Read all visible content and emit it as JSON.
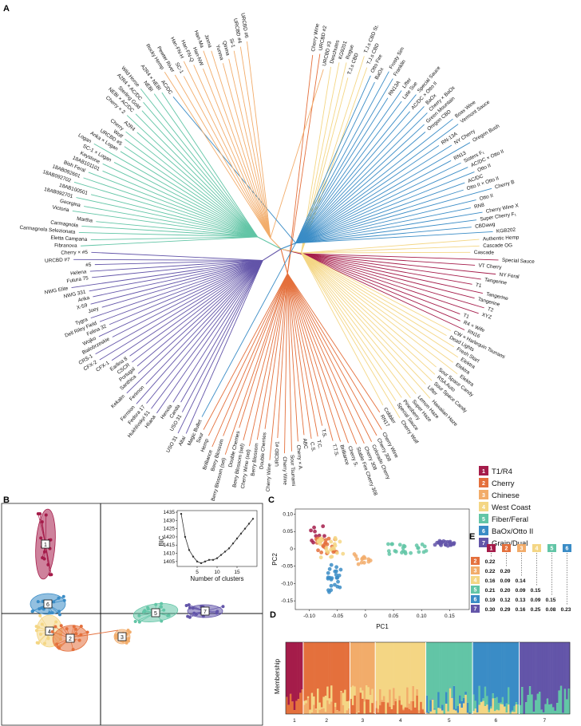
{
  "panels": {
    "a": "A",
    "b": "B",
    "c": "C",
    "d": "D",
    "e": "E"
  },
  "clusters": [
    {
      "id": "1",
      "name": "T1/R4",
      "color": "#a51c4a"
    },
    {
      "id": "2",
      "name": "Cherry",
      "color": "#e4703c"
    },
    {
      "id": "3",
      "name": "Chinese",
      "color": "#f2ac6a"
    },
    {
      "id": "4",
      "name": "West Coast",
      "color": "#f4d684"
    },
    {
      "id": "5",
      "name": "Fiber/Feral",
      "color": "#62c5a6"
    },
    {
      "id": "6",
      "name": "BaOx/Otto II",
      "color": "#3a8cc6"
    },
    {
      "id": "7",
      "name": "Grain/Dual",
      "color": "#6355a9"
    }
  ],
  "tree_leaves": [
    {
      "label": "Cherry Wine",
      "cluster": 2
    },
    {
      "label": "URCBD #2",
      "cluster": 2
    },
    {
      "label": "URCBD #3",
      "cluster": 3
    },
    {
      "label": "Deschutes",
      "cluster": 4
    },
    {
      "label": "KG9201",
      "cluster": 4
    },
    {
      "label": "Rogue",
      "cluster": 4
    },
    {
      "label": "T.J.s CBD",
      "cluster": 4
    },
    {
      "label": "T.J.s CBD St.",
      "cluster": 4
    },
    {
      "label": "T.J.s CBD",
      "cluster": 4
    },
    {
      "label": "Otto Fire",
      "cluster": 6
    },
    {
      "label": "BaOx",
      "cluster": 6
    },
    {
      "label": "Frosty Sim",
      "cluster": 6
    },
    {
      "label": "Franklin",
      "cluster": 6
    },
    {
      "label": "RN13A",
      "cluster": 6
    },
    {
      "label": "Lifter",
      "cluster": 6
    },
    {
      "label": "Late Sue",
      "cluster": 6
    },
    {
      "label": "Special Sauce",
      "cluster": 6
    },
    {
      "label": "AC/DC × Otto II",
      "cluster": 6
    },
    {
      "label": "BaOx",
      "cluster": 6
    },
    {
      "label": "Cherry × BaOx",
      "cluster": 6
    },
    {
      "label": "Green Mountain",
      "cluster": 6
    },
    {
      "label": "Oregon CBD",
      "cluster": 6
    },
    {
      "label": "Boax Wine",
      "cluster": 6
    },
    {
      "label": "Vermont Sauce",
      "cluster": 6
    },
    {
      "label": "RN-13A",
      "cluster": 6
    },
    {
      "label": "NY Cherry",
      "cluster": 6
    },
    {
      "label": "Oregon Bush",
      "cluster": 6
    },
    {
      "label": "RN13",
      "cluster": 6
    },
    {
      "label": "Sisters F₁",
      "cluster": 6
    },
    {
      "label": "AC/DC × Otto II",
      "cluster": 6
    },
    {
      "label": "Otto II",
      "cluster": 6
    },
    {
      "label": "AC/DC",
      "cluster": 6
    },
    {
      "label": "Otto II × Otto II",
      "cluster": 6
    },
    {
      "label": "Cherry B",
      "cluster": 6
    },
    {
      "label": "Otto II",
      "cluster": 6
    },
    {
      "label": "RN8",
      "cluster": 6
    },
    {
      "label": "Cherry Wine X",
      "cluster": 6
    },
    {
      "label": "Super Cherry F₁",
      "cluster": 6
    },
    {
      "label": "CBDawg",
      "cluster": 6
    },
    {
      "label": "KGB202",
      "cluster": 6
    },
    {
      "label": "Authentic Hemp",
      "cluster": 4
    },
    {
      "label": "Cascade OG",
      "cluster": 4
    },
    {
      "label": "Cascade",
      "cluster": 4
    },
    {
      "label": "Special Sauce",
      "cluster": 1
    },
    {
      "label": "VT Cherry",
      "cluster": 1
    },
    {
      "label": "NY Feral",
      "cluster": 1
    },
    {
      "label": "Tangerine",
      "cluster": 1
    },
    {
      "label": "T1",
      "cluster": 1
    },
    {
      "label": "Tangerine",
      "cluster": 1
    },
    {
      "label": "Tangerine",
      "cluster": 1
    },
    {
      "label": "T2",
      "cluster": 1
    },
    {
      "label": "XYZ",
      "cluster": 1
    },
    {
      "label": "T1",
      "cluster": 1
    },
    {
      "label": "R4 × Wife",
      "cluster": 1
    },
    {
      "label": "RN16",
      "cluster": 1
    },
    {
      "label": "CW × Harlequin Tsunami",
      "cluster": 4
    },
    {
      "label": "Dead Lights",
      "cluster": 4
    },
    {
      "label": "Fresh Start",
      "cluster": 4
    },
    {
      "label": "Elektra",
      "cluster": 4
    },
    {
      "label": "Elektra",
      "cluster": 4
    },
    {
      "label": "Elektra",
      "cluster": 4
    },
    {
      "label": "Sour Space Candy",
      "cluster": 4
    },
    {
      "label": "RSA Auto",
      "cluster": 4
    },
    {
      "label": "Sour Space Candy",
      "cluster": 4
    },
    {
      "label": "Lifter",
      "cluster": 4
    },
    {
      "label": "Hawaiian Haze",
      "cluster": 4
    },
    {
      "label": "Lemon Haze",
      "cluster": 4
    },
    {
      "label": "Super Haze",
      "cluster": 4
    },
    {
      "label": "Pinesberry",
      "cluster": 4
    },
    {
      "label": "Special Sauce",
      "cluster": 4
    },
    {
      "label": "Cherry Wolf",
      "cluster": 4
    },
    {
      "label": "Cobbler",
      "cluster": 4
    },
    {
      "label": "RN17",
      "cluster": 2
    },
    {
      "label": "Cherry Wine",
      "cluster": 2
    },
    {
      "label": "Cherry 308",
      "cluster": 2
    },
    {
      "label": "Colorado Cherry",
      "cluster": 2
    },
    {
      "label": "Cherry 308",
      "cluster": 2
    },
    {
      "label": "Stable Fire Cherry 308",
      "cluster": 2
    },
    {
      "label": "Cherry S.",
      "cluster": 2
    },
    {
      "label": "Brilliance",
      "cluster": 2
    },
    {
      "label": "T.T.S.",
      "cluster": 2
    },
    {
      "label": "T.S.",
      "cluster": 2
    },
    {
      "label": "T.C.",
      "cluster": 2
    },
    {
      "label": "C.S.",
      "cluster": 2
    },
    {
      "label": "ABC",
      "cluster": 2
    },
    {
      "label": "Cherry × A.",
      "cluster": 2
    },
    {
      "label": "Sour Tsunami",
      "cluster": 2
    },
    {
      "label": "Cherry Wine",
      "cluster": 2
    },
    {
      "label": "URCBD #1",
      "cluster": 2
    },
    {
      "label": "Cherry Wine",
      "cluster": 2
    },
    {
      "label": "Double Cherries",
      "cluster": 2
    },
    {
      "label": "Berry Blossom",
      "cluster": 2
    },
    {
      "label": "Cherry Wine (sel)",
      "cluster": 2
    },
    {
      "label": "Berry Blossom (sel)",
      "cluster": 2
    },
    {
      "label": "Double Cherries",
      "cluster": 2
    },
    {
      "label": "Berry Blossom (sel)",
      "cluster": 2
    },
    {
      "label": "Berry Blossom",
      "cluster": 2
    },
    {
      "label": "Brilliance",
      "cluster": 2
    },
    {
      "label": "Hemp",
      "cluster": 2
    },
    {
      "label": "Sour",
      "cluster": 2
    },
    {
      "label": "Magic Bullet",
      "cluster": 6
    },
    {
      "label": "Altai",
      "cluster": 7
    },
    {
      "label": "USO 31",
      "cluster": 7
    },
    {
      "label": "USO 31",
      "cluster": 7
    },
    {
      "label": "Canda",
      "cluster": 7
    },
    {
      "label": "Henola",
      "cluster": 7
    },
    {
      "label": "Hliana",
      "cluster": 7
    },
    {
      "label": "Hukhlivskyi 51",
      "cluster": 7
    },
    {
      "label": "Fedora 17",
      "cluster": 7
    },
    {
      "label": "Fermion",
      "cluster": 7
    },
    {
      "label": "Ferimon",
      "cluster": 7
    },
    {
      "label": "Kekalm",
      "cluster": 7
    },
    {
      "label": "Santhica",
      "cluster": 7
    },
    {
      "label": "Portugal",
      "cluster": 7
    },
    {
      "label": "CSCR",
      "cluster": 7
    },
    {
      "label": "Earlina 8",
      "cluster": 7
    },
    {
      "label": "CFX-1",
      "cluster": 7
    },
    {
      "label": "CFX-2",
      "cluster": 7
    },
    {
      "label": "CRS-1",
      "cluster": 7
    },
    {
      "label": "Bialobrzeskie",
      "cluster": 7
    },
    {
      "label": "Wojko",
      "cluster": 7
    },
    {
      "label": "Felina 32",
      "cluster": 7
    },
    {
      "label": "Dell Riley Field",
      "cluster": 7
    },
    {
      "label": "Tygra",
      "cluster": 7
    },
    {
      "label": "Joey",
      "cluster": 7
    },
    {
      "label": "X-59",
      "cluster": 7
    },
    {
      "label": "Anka",
      "cluster": 7
    },
    {
      "label": "NWG 331",
      "cluster": 7
    },
    {
      "label": "NWG Elite",
      "cluster": 7
    },
    {
      "label": "Futura 75",
      "cluster": 7
    },
    {
      "label": "Helena",
      "cluster": 7
    },
    {
      "label": "#5",
      "cluster": 7
    },
    {
      "label": "URCBD #7",
      "cluster": 7
    },
    {
      "label": "Cherry × #5",
      "cluster": 7
    },
    {
      "label": "Fibranova",
      "cluster": 5
    },
    {
      "label": "Eletta Campana",
      "cluster": 5
    },
    {
      "label": "Carmagnola Selezionata",
      "cluster": 5
    },
    {
      "label": "Carmagnola",
      "cluster": 5
    },
    {
      "label": "Martha",
      "cluster": 5
    },
    {
      "label": "Victoria",
      "cluster": 5
    },
    {
      "label": "Georgina",
      "cluster": 5
    },
    {
      "label": "18AB092701",
      "cluster": 5
    },
    {
      "label": "18AB100501",
      "cluster": 5
    },
    {
      "label": "18AB092702",
      "cluster": 5
    },
    {
      "label": "18AB092601",
      "cluster": 5
    },
    {
      "label": "Bish Feral",
      "cluster": 5
    },
    {
      "label": "18AB101101",
      "cluster": 5
    },
    {
      "label": "Keystone",
      "cluster": 5
    },
    {
      "label": "SC-1 × Logan",
      "cluster": 5
    },
    {
      "label": "Logan",
      "cluster": 5
    },
    {
      "label": "Anka × Logan",
      "cluster": 5
    },
    {
      "label": "URCBD #5",
      "cluster": 5
    },
    {
      "label": "Wolf",
      "cluster": 5
    },
    {
      "label": "Cherry",
      "cluster": 5
    },
    {
      "label": "A2R4",
      "cluster": 5
    },
    {
      "label": "Cherry × 2",
      "cluster": 5
    },
    {
      "label": "NEBI × AC/DC",
      "cluster": 5
    },
    {
      "label": "Sterling Gold",
      "cluster": 5
    },
    {
      "label": "A2R4 × AC/DC",
      "cluster": 5
    },
    {
      "label": "Wild Horse",
      "cluster": 5
    },
    {
      "label": "NEBI",
      "cluster": 5
    },
    {
      "label": "A2R4 × NEBI",
      "cluster": 5
    },
    {
      "label": "AC/DC",
      "cluster": 6
    },
    {
      "label": "Rocky Hemp",
      "cluster": 3
    },
    {
      "label": "Pewter River",
      "cluster": 3
    },
    {
      "label": "SC-1",
      "cluster": 3
    },
    {
      "label": "Han-FN-H",
      "cluster": 3
    },
    {
      "label": "Han-FN-Q",
      "cluster": 3
    },
    {
      "label": "Han-NW",
      "cluster": 3
    },
    {
      "label": "Han-Ma",
      "cluster": 3
    },
    {
      "label": "Jinma",
      "cluster": 3
    },
    {
      "label": "Yunma",
      "cluster": 3
    },
    {
      "label": "Qinma",
      "cluster": 3
    },
    {
      "label": "Si-1",
      "cluster": 3
    },
    {
      "label": "URCBD #4",
      "cluster": 3
    },
    {
      "label": "URCBD #6",
      "cluster": 3
    }
  ],
  "bic": {
    "ylabel": "BIC",
    "xlabel": "Number of clusters",
    "x": [
      1,
      2,
      3,
      4,
      5,
      6,
      7,
      8,
      9,
      10,
      11,
      12,
      13,
      14,
      15,
      16,
      17,
      18,
      19
    ],
    "y": [
      1434,
      1420,
      1412,
      1408,
      1405,
      1404,
      1405,
      1406,
      1406,
      1407,
      1409,
      1411,
      1413,
      1416,
      1419,
      1422,
      1425,
      1428,
      1431
    ],
    "yticks": [
      "1435",
      "1430",
      "1425",
      "1420",
      "1415",
      "1410",
      "1405"
    ],
    "xticks": [
      "5",
      "10",
      "15"
    ]
  },
  "pca": {
    "xlabel": "PC1",
    "ylabel": "PC2",
    "xticks": [
      "-0.10",
      "-0.05",
      "0",
      "0.05",
      "0.10",
      "0.15"
    ],
    "yticks": [
      "0.10",
      "0.05",
      "0",
      "-0.05",
      "-0.10",
      "-0.15"
    ],
    "centers": [
      {
        "cluster": 1,
        "x": -0.085,
        "y": 0.04
      },
      {
        "cluster": 2,
        "x": -0.07,
        "y": 0.01
      },
      {
        "cluster": 3,
        "x": -0.005,
        "y": -0.03
      },
      {
        "cluster": 4,
        "x": -0.06,
        "y": 0.005
      },
      {
        "cluster": 5,
        "x": 0.075,
        "y": 0.0
      },
      {
        "cluster": 6,
        "x": -0.055,
        "y": -0.085
      },
      {
        "cluster": 7,
        "x": 0.14,
        "y": 0.015
      }
    ]
  },
  "structure": {
    "ylabel": "Membership",
    "groups": [
      {
        "label": "1",
        "n": 9
      },
      {
        "label": "2",
        "n": 24
      },
      {
        "label": "3",
        "n": 13
      },
      {
        "label": "4",
        "n": 26
      },
      {
        "label": "5",
        "n": 24
      },
      {
        "label": "6",
        "n": 24
      },
      {
        "label": "7",
        "n": 26
      }
    ]
  },
  "fst": {
    "rows": [
      {
        "cluster": "2",
        "values": [
          "0.22"
        ]
      },
      {
        "cluster": "3",
        "values": [
          "0.22",
          "0.20"
        ]
      },
      {
        "cluster": "4",
        "values": [
          "0.16",
          "0.09",
          "0.14"
        ]
      },
      {
        "cluster": "5",
        "values": [
          "0.21",
          "0.20",
          "0.09",
          "0.15"
        ]
      },
      {
        "cluster": "6",
        "values": [
          "0.19",
          "0.12",
          "0.13",
          "0.09",
          "0.15"
        ]
      },
      {
        "cluster": "7",
        "values": [
          "0.30",
          "0.29",
          "0.16",
          "0.25",
          "0.08",
          "0.23"
        ]
      }
    ],
    "cols": [
      "1",
      "2",
      "3",
      "4",
      "5",
      "6"
    ]
  }
}
